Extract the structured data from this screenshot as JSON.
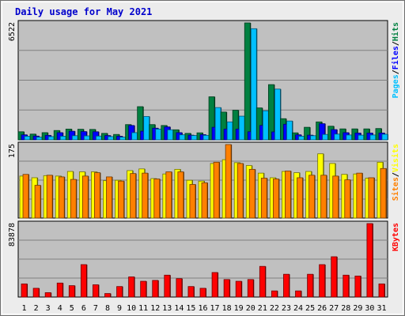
{
  "chart_data": {
    "type": "bar",
    "title": "Daily usage for May 2021",
    "categories": [
      "1",
      "2",
      "3",
      "4",
      "5",
      "6",
      "7",
      "8",
      "9",
      "10",
      "11",
      "12",
      "13",
      "14",
      "15",
      "16",
      "17",
      "18",
      "19",
      "20",
      "21",
      "22",
      "23",
      "24",
      "25",
      "26",
      "27",
      "28",
      "29",
      "30",
      "31"
    ],
    "weekend_days": [
      "1",
      "2",
      "8",
      "9",
      "15",
      "16",
      "22",
      "23",
      "29",
      "30"
    ],
    "colors": {
      "hits": "#008040",
      "files": "#0000ff",
      "pages": "#00c0ff",
      "visits": "#ffff00",
      "sites": "#ff8000",
      "kbytes": "#ff0000",
      "weekday_label": "#000080",
      "weekend_label": "#00a050"
    },
    "panels": [
      {
        "name": "hits-files-pages",
        "ymax": 6522,
        "ymax_label": "6522",
        "side_label": [
          {
            "text": "Pages",
            "color": "#00c0ff"
          },
          {
            "text": "/",
            "color": "#000000"
          },
          {
            "text": "Files",
            "color": "#0000ff"
          },
          {
            "text": "/",
            "color": "#000000"
          },
          {
            "text": "Hits",
            "color": "#008040"
          }
        ],
        "series": [
          {
            "name": "Hits",
            "color": "#008040",
            "values": [
              450,
              320,
              400,
              520,
              600,
              590,
              580,
              360,
              300,
              850,
              1850,
              850,
              800,
              560,
              360,
              390,
              2400,
              1550,
              1650,
              6522,
              1780,
              3080,
              1180,
              390,
              700,
              1000,
              760,
              610,
              610,
              610,
              630
            ]
          },
          {
            "name": "Files",
            "color": "#0000ff",
            "values": [
              280,
              210,
              250,
              400,
              480,
              460,
              450,
              240,
              200,
              800,
              480,
              650,
              720,
              400,
              260,
              290,
              700,
              600,
              600,
              450,
              800,
              440,
              870,
              280,
              260,
              900,
              570,
              400,
              380,
              380,
              380
            ]
          },
          {
            "name": "Pages",
            "color": "#00c0ff",
            "values": [
              200,
              150,
              180,
              200,
              230,
              220,
              210,
              180,
              150,
              400,
              1300,
              600,
              560,
              280,
              240,
              250,
              1800,
              1000,
              1320,
              6200,
              1620,
              2830,
              1050,
              200,
              230,
              300,
              320,
              270,
              260,
              270,
              310
            ]
          }
        ]
      },
      {
        "name": "visits-sites",
        "ymax": 175,
        "ymax_label": "175",
        "side_label": [
          {
            "text": "Sites",
            "color": "#ff8000"
          },
          {
            "text": "/",
            "color": "#000000"
          },
          {
            "text": "Visits",
            "color": "#ffff00"
          }
        ],
        "series": [
          {
            "name": "Visits",
            "color": "#ffff00",
            "values": [
              100,
              96,
              101,
              100,
              111,
              110,
              110,
              89,
              90,
              113,
              117,
              94,
              105,
              116,
              90,
              88,
              130,
              139,
              132,
              125,
              107,
              96,
              111,
              108,
              111,
              153,
              130,
              104,
              105,
              95,
              133
            ]
          },
          {
            "name": "Sites",
            "color": "#ff8000",
            "values": [
              104,
              78,
              102,
              98,
              92,
              100,
              108,
              98,
              88,
              106,
              107,
              93,
              110,
              110,
              80,
              84,
              133,
              175,
              130,
              116,
              95,
              93,
              112,
              96,
              102,
              102,
              100,
              91,
              107,
              96,
              118
            ]
          }
        ]
      },
      {
        "name": "kbytes",
        "ymax": 83878,
        "ymax_label": "83878",
        "side_label": [
          {
            "text": "KBytes",
            "color": "#ff0000"
          }
        ],
        "series": [
          {
            "name": "KBytes",
            "color": "#ff0000",
            "values": [
              15000,
              10000,
              5000,
              16000,
              13000,
              37000,
              14000,
              4000,
              12000,
              23000,
              18000,
              19000,
              25000,
              21000,
              12000,
              10000,
              28000,
              20000,
              18000,
              20000,
              35000,
              7000,
              26000,
              7000,
              26000,
              37000,
              46000,
              25000,
              24000,
              83878,
              15000
            ]
          }
        ]
      }
    ]
  }
}
